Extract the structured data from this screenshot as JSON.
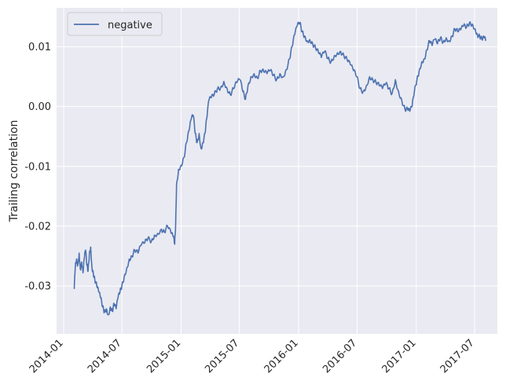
{
  "chart_data": {
    "type": "line",
    "xlabel": "",
    "ylabel": "Trailing correlation",
    "x_axis": {
      "type": "date",
      "range": [
        "2013-12-10",
        "2017-09-10"
      ],
      "ticks": [
        "2014-01",
        "2014-07",
        "2015-01",
        "2015-07",
        "2016-01",
        "2016-07",
        "2017-01",
        "2017-07"
      ]
    },
    "y_axis": {
      "range": [
        -0.038,
        0.0165
      ],
      "ticks": [
        -0.03,
        -0.02,
        -0.01,
        0.0,
        0.01
      ],
      "tick_labels": [
        "-0.03",
        "-0.02",
        "-0.01",
        "0.00",
        "0.01"
      ]
    },
    "grid": true,
    "legend": {
      "position": "top-left"
    },
    "colors": {
      "background": "#eaeaf2",
      "grid": "#ffffff",
      "line": "#4c72b0",
      "text": "#262626"
    },
    "series": [
      {
        "name": "negative",
        "points": [
          [
            "2014-02-03",
            -0.0305
          ],
          [
            "2014-02-06",
            -0.0268
          ],
          [
            "2014-02-10",
            -0.0255
          ],
          [
            "2014-02-14",
            -0.0265
          ],
          [
            "2014-02-18",
            -0.0245
          ],
          [
            "2014-02-22",
            -0.0272
          ],
          [
            "2014-02-26",
            -0.026
          ],
          [
            "2014-03-02",
            -0.0278
          ],
          [
            "2014-03-06",
            -0.0255
          ],
          [
            "2014-03-10",
            -0.024
          ],
          [
            "2014-03-14",
            -0.0265
          ],
          [
            "2014-03-18",
            -0.0275
          ],
          [
            "2014-03-22",
            -0.0245
          ],
          [
            "2014-03-26",
            -0.0235
          ],
          [
            "2014-03-30",
            -0.0268
          ],
          [
            "2014-04-03",
            -0.0278
          ],
          [
            "2014-04-08",
            -0.029
          ],
          [
            "2014-04-14",
            -0.03
          ],
          [
            "2014-04-20",
            -0.031
          ],
          [
            "2014-04-26",
            -0.032
          ],
          [
            "2014-05-02",
            -0.0335
          ],
          [
            "2014-05-08",
            -0.0343
          ],
          [
            "2014-05-14",
            -0.0338
          ],
          [
            "2014-05-20",
            -0.0348
          ],
          [
            "2014-05-26",
            -0.0335
          ],
          [
            "2014-06-01",
            -0.0342
          ],
          [
            "2014-06-07",
            -0.033
          ],
          [
            "2014-06-13",
            -0.0338
          ],
          [
            "2014-06-19",
            -0.032
          ],
          [
            "2014-06-25",
            -0.031
          ],
          [
            "2014-07-01",
            -0.03
          ],
          [
            "2014-07-08",
            -0.0285
          ],
          [
            "2014-07-16",
            -0.027
          ],
          [
            "2014-07-24",
            -0.0255
          ],
          [
            "2014-08-01",
            -0.025
          ],
          [
            "2014-08-10",
            -0.024
          ],
          [
            "2014-08-20",
            -0.0245
          ],
          [
            "2014-08-30",
            -0.0232
          ],
          [
            "2014-09-10",
            -0.0228
          ],
          [
            "2014-09-20",
            -0.022
          ],
          [
            "2014-10-01",
            -0.0225
          ],
          [
            "2014-10-10",
            -0.0215
          ],
          [
            "2014-10-20",
            -0.0212
          ],
          [
            "2014-11-01",
            -0.0205
          ],
          [
            "2014-11-10",
            -0.021
          ],
          [
            "2014-11-20",
            -0.02
          ],
          [
            "2014-12-01",
            -0.0212
          ],
          [
            "2014-12-08",
            -0.0218
          ],
          [
            "2014-12-12",
            -0.023
          ],
          [
            "2014-12-15",
            -0.02
          ],
          [
            "2014-12-18",
            -0.013
          ],
          [
            "2014-12-24",
            -0.0105
          ],
          [
            "2015-01-01",
            -0.0098
          ],
          [
            "2015-01-10",
            -0.0085
          ],
          [
            "2015-01-18",
            -0.006
          ],
          [
            "2015-01-26",
            -0.004
          ],
          [
            "2015-02-02",
            -0.002
          ],
          [
            "2015-02-08",
            -0.0015
          ],
          [
            "2015-02-14",
            -0.0045
          ],
          [
            "2015-02-20",
            -0.006
          ],
          [
            "2015-02-26",
            -0.0045
          ],
          [
            "2015-03-04",
            -0.007
          ],
          [
            "2015-03-10",
            -0.006
          ],
          [
            "2015-03-16",
            -0.0045
          ],
          [
            "2015-03-22",
            -0.002
          ],
          [
            "2015-03-28",
            0.001
          ],
          [
            "2015-04-05",
            0.0015
          ],
          [
            "2015-04-14",
            0.002
          ],
          [
            "2015-04-24",
            0.003
          ],
          [
            "2015-05-04",
            0.0032
          ],
          [
            "2015-05-14",
            0.0042
          ],
          [
            "2015-05-24",
            0.003
          ],
          [
            "2015-06-03",
            0.002
          ],
          [
            "2015-06-13",
            0.003
          ],
          [
            "2015-06-23",
            0.004
          ],
          [
            "2015-07-03",
            0.0045
          ],
          [
            "2015-07-12",
            0.0025
          ],
          [
            "2015-07-20",
            0.0012
          ],
          [
            "2015-07-28",
            0.0035
          ],
          [
            "2015-08-06",
            0.005
          ],
          [
            "2015-08-16",
            0.0055
          ],
          [
            "2015-08-26",
            0.0048
          ],
          [
            "2015-09-05",
            0.006
          ],
          [
            "2015-09-15",
            0.0058
          ],
          [
            "2015-09-25",
            0.0055
          ],
          [
            "2015-10-05",
            0.006
          ],
          [
            "2015-10-15",
            0.0052
          ],
          [
            "2015-10-25",
            0.0045
          ],
          [
            "2015-11-04",
            0.0055
          ],
          [
            "2015-11-14",
            0.005
          ],
          [
            "2015-11-24",
            0.0062
          ],
          [
            "2015-12-04",
            0.008
          ],
          [
            "2015-12-12",
            0.01
          ],
          [
            "2015-12-20",
            0.012
          ],
          [
            "2015-12-28",
            0.0135
          ],
          [
            "2016-01-05",
            0.014
          ],
          [
            "2016-01-12",
            0.0125
          ],
          [
            "2016-01-20",
            0.0118
          ],
          [
            "2016-01-28",
            0.011
          ],
          [
            "2016-02-05",
            0.0112
          ],
          [
            "2016-02-14",
            0.0105
          ],
          [
            "2016-02-23",
            0.0098
          ],
          [
            "2016-03-03",
            0.009
          ],
          [
            "2016-03-12",
            0.0082
          ],
          [
            "2016-03-22",
            0.0092
          ],
          [
            "2016-04-01",
            0.008
          ],
          [
            "2016-04-11",
            0.0075
          ],
          [
            "2016-04-21",
            0.0085
          ],
          [
            "2016-05-01",
            0.009
          ],
          [
            "2016-05-11",
            0.0092
          ],
          [
            "2016-05-21",
            0.0085
          ],
          [
            "2016-05-31",
            0.0078
          ],
          [
            "2016-06-10",
            0.007
          ],
          [
            "2016-06-20",
            0.006
          ],
          [
            "2016-06-30",
            0.005
          ],
          [
            "2016-07-10",
            0.003
          ],
          [
            "2016-07-20",
            0.0025
          ],
          [
            "2016-07-30",
            0.0035
          ],
          [
            "2016-08-09",
            0.005
          ],
          [
            "2016-08-19",
            0.0045
          ],
          [
            "2016-08-29",
            0.004
          ],
          [
            "2016-09-08",
            0.0035
          ],
          [
            "2016-09-18",
            0.003
          ],
          [
            "2016-09-28",
            0.0038
          ],
          [
            "2016-10-08",
            0.003
          ],
          [
            "2016-10-18",
            0.0022
          ],
          [
            "2016-10-28",
            0.0045
          ],
          [
            "2016-11-07",
            0.0025
          ],
          [
            "2016-11-17",
            0.001
          ],
          [
            "2016-11-27",
            -0.0005
          ],
          [
            "2016-12-05",
            -0.0005
          ],
          [
            "2016-12-12",
            -0.0008
          ],
          [
            "2016-12-19",
            0.0
          ],
          [
            "2016-12-26",
            0.0025
          ],
          [
            "2017-01-03",
            0.0045
          ],
          [
            "2017-01-10",
            0.006
          ],
          [
            "2017-01-18",
            0.0075
          ],
          [
            "2017-01-26",
            0.008
          ],
          [
            "2017-02-03",
            0.0095
          ],
          [
            "2017-02-11",
            0.011
          ],
          [
            "2017-02-19",
            0.0102
          ],
          [
            "2017-02-27",
            0.0112
          ],
          [
            "2017-03-08",
            0.0105
          ],
          [
            "2017-03-17",
            0.0115
          ],
          [
            "2017-03-26",
            0.0108
          ],
          [
            "2017-04-04",
            0.0115
          ],
          [
            "2017-04-13",
            0.011
          ],
          [
            "2017-04-22",
            0.0118
          ],
          [
            "2017-05-01",
            0.013
          ],
          [
            "2017-05-10",
            0.0125
          ],
          [
            "2017-05-19",
            0.0128
          ],
          [
            "2017-05-28",
            0.0135
          ],
          [
            "2017-06-06",
            0.0132
          ],
          [
            "2017-06-15",
            0.014
          ],
          [
            "2017-06-24",
            0.0138
          ],
          [
            "2017-07-03",
            0.013
          ],
          [
            "2017-07-10",
            0.012
          ],
          [
            "2017-07-17",
            0.0118
          ],
          [
            "2017-07-24",
            0.0112
          ],
          [
            "2017-07-31",
            0.0115
          ],
          [
            "2017-08-05",
            0.011
          ]
        ]
      }
    ]
  }
}
